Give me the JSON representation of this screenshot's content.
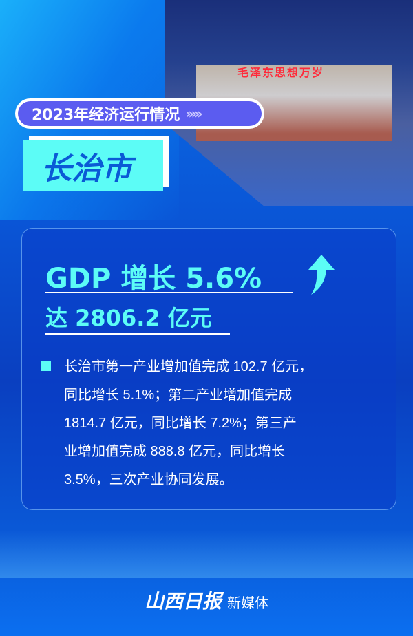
{
  "header": {
    "sign_text": "毛泽东思想万岁",
    "tag": "2023年经济运行情况",
    "tag_chevrons": "›››››",
    "city": "长治市"
  },
  "card": {
    "headline": "GDP 增长 5.6%",
    "subheadline": "达 2806.2 亿元",
    "arrow_icon": "up-arrow-icon",
    "body_lines": [
      "长治市第一产业增加值完成 102.7 亿元，",
      "同比增长  5.1%；第二产业增加值完成",
      "1814.7  亿元，同比增长  7.2%；第三产",
      "业增加值完成  888.8  亿元，同比增长",
      "3.5%，三次产业协同发展。"
    ]
  },
  "footer": {
    "logo": "山西日报",
    "suffix": "新媒体"
  },
  "colors": {
    "accent": "#5cfcf6",
    "tag_bg": "#5b5cf0",
    "background": "#0a4fd0"
  }
}
